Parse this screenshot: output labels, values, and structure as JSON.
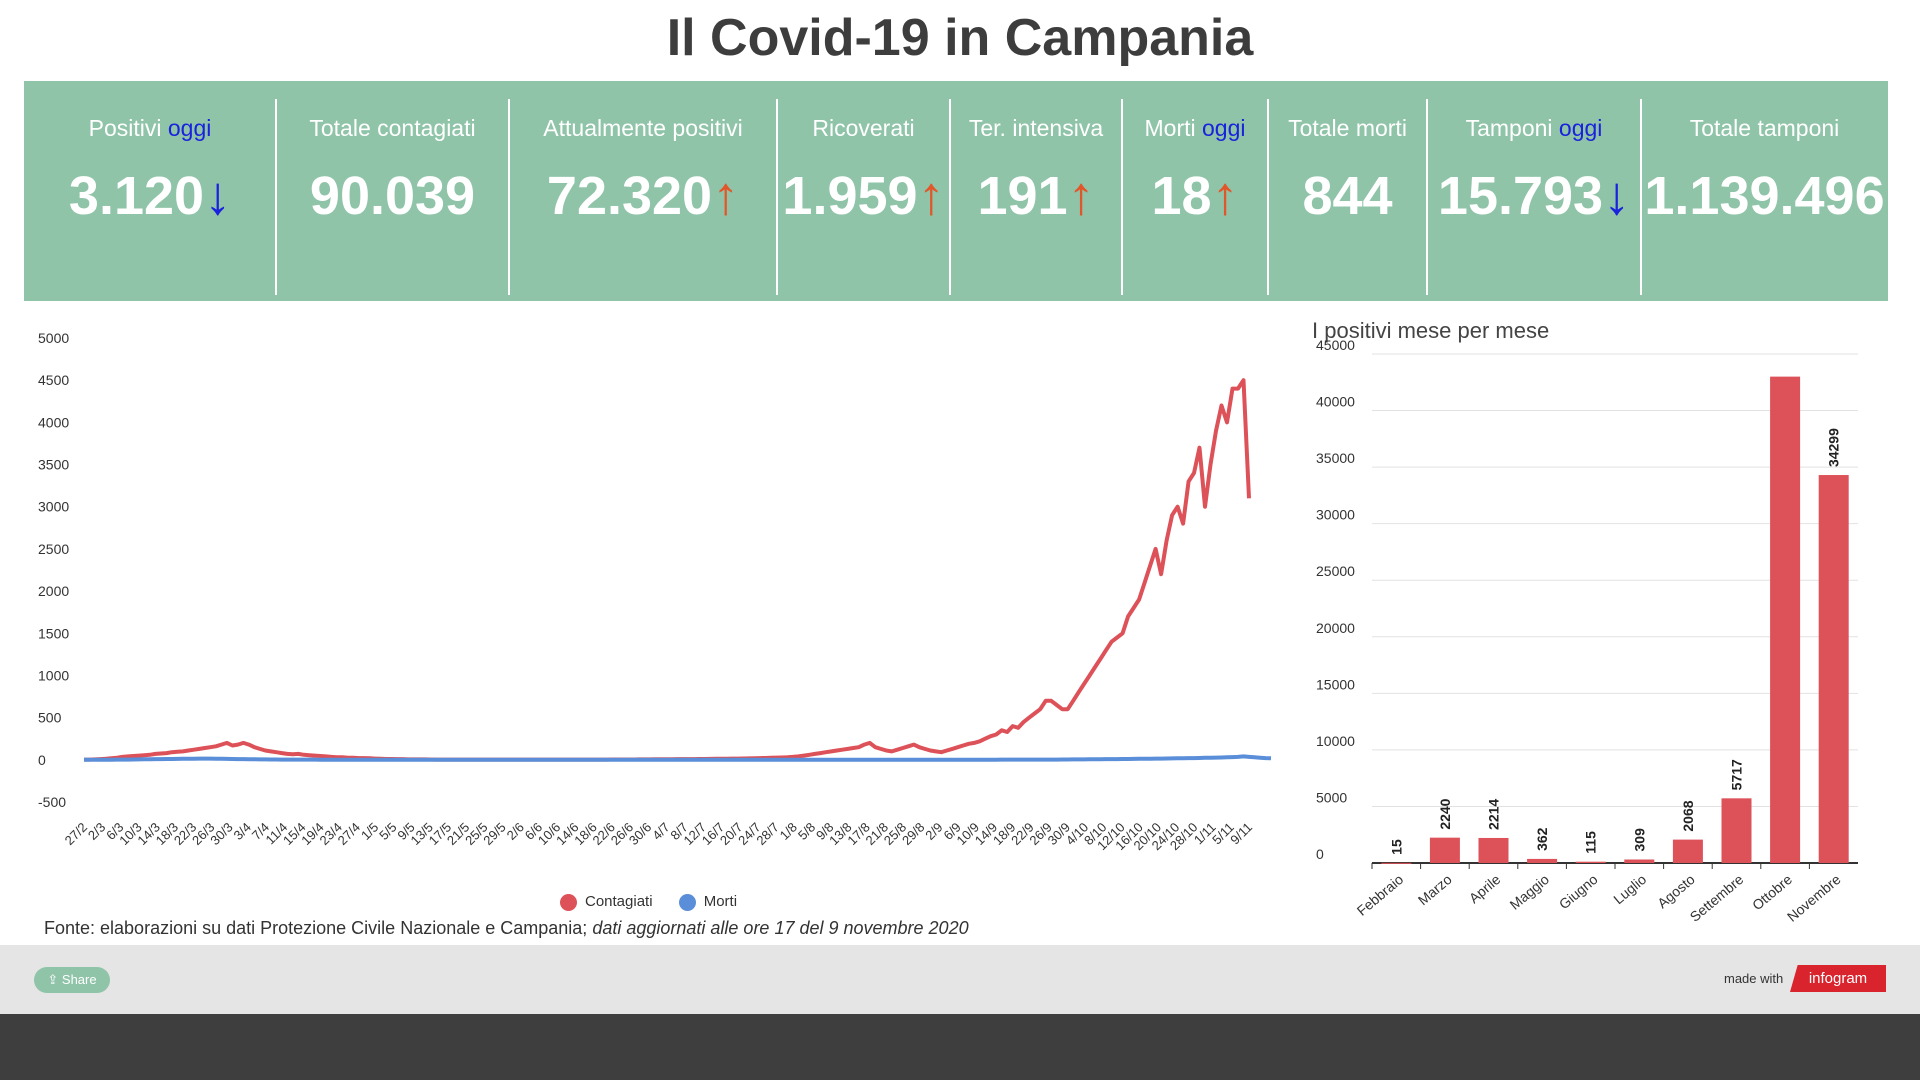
{
  "title": "Il Covid-19 in Campania",
  "stats": [
    {
      "label": "Positivi",
      "highlight": "oggi",
      "value": "3.120",
      "arrow": "↓",
      "trend": "down"
    },
    {
      "label": "Totale contagiati",
      "highlight": "",
      "value": "90.039",
      "arrow": "",
      "trend": ""
    },
    {
      "label": "Attualmente positivi",
      "highlight": "",
      "value": "72.320",
      "arrow": "↑",
      "trend": "up"
    },
    {
      "label": "Ricoverati",
      "highlight": "",
      "value": "1.959",
      "arrow": "↑",
      "trend": "up"
    },
    {
      "label": "Ter. intensiva",
      "highlight": "",
      "value": "191",
      "arrow": "↑",
      "trend": "up"
    },
    {
      "label": "Morti",
      "highlight": "oggi",
      "value": "18",
      "arrow": "↑",
      "trend": "up"
    },
    {
      "label": "Totale morti",
      "highlight": "",
      "value": "844",
      "arrow": "",
      "trend": ""
    },
    {
      "label": "Tamponi",
      "highlight": "oggi",
      "value": "15.793",
      "arrow": "↓",
      "trend": "down"
    },
    {
      "label": "Totale tamponi",
      "highlight": "",
      "value": "1.139.496",
      "arrow": "",
      "trend": ""
    }
  ],
  "colors": {
    "panel": "#8fc4a8",
    "contagiati": "#dd5158",
    "morti": "#5a8ed8",
    "oggi": "#1a22dd",
    "arrow_up": "#e2572a",
    "arrow_down": "#1a22dd"
  },
  "chart_data": [
    {
      "type": "line",
      "title": "",
      "ylim": [
        -500,
        5000
      ],
      "yticks": [
        5000,
        4500,
        4000,
        3500,
        3000,
        2500,
        2000,
        1500,
        1000,
        500,
        0,
        -500
      ],
      "grid": false,
      "legend_placement": "bottom",
      "x_tick_labels": [
        "27/2",
        "2/3",
        "6/3",
        "10/3",
        "14/3",
        "18/3",
        "22/3",
        "26/3",
        "30/3",
        "3/4",
        "7/4",
        "11/4",
        "15/4",
        "19/4",
        "23/4",
        "27/4",
        "1/5",
        "5/5",
        "9/5",
        "13/5",
        "17/5",
        "21/5",
        "25/5",
        "29/5",
        "2/6",
        "6/6",
        "10/6",
        "14/6",
        "18/6",
        "22/6",
        "26/6",
        "30/6",
        "4/7",
        "8/7",
        "12/7",
        "16/7",
        "20/7",
        "24/7",
        "28/7",
        "1/8",
        "5/8",
        "9/8",
        "13/8",
        "17/8",
        "21/8",
        "25/8",
        "29/8",
        "2/9",
        "6/9",
        "10/9",
        "14/9",
        "18/9",
        "22/9",
        "26/9",
        "30/9",
        "4/10",
        "8/10",
        "12/10",
        "16/10",
        "20/10",
        "24/10",
        "28/10",
        "1/11",
        "5/11",
        "9/11"
      ],
      "series": [
        {
          "name": "Contagiati",
          "values": [
            2,
            3,
            5,
            8,
            12,
            18,
            25,
            35,
            40,
            45,
            50,
            55,
            60,
            70,
            75,
            80,
            90,
            95,
            100,
            110,
            120,
            130,
            140,
            150,
            160,
            180,
            200,
            170,
            180,
            200,
            180,
            150,
            130,
            110,
            100,
            90,
            80,
            70,
            65,
            70,
            60,
            55,
            50,
            45,
            40,
            35,
            30,
            30,
            25,
            25,
            20,
            20,
            18,
            15,
            12,
            10,
            10,
            8,
            8,
            5,
            5,
            5,
            5,
            4,
            3,
            3,
            3,
            3,
            3,
            2,
            2,
            2,
            2,
            2,
            2,
            2,
            2,
            2,
            2,
            2,
            2,
            2,
            2,
            2,
            2,
            3,
            3,
            3,
            3,
            3,
            3,
            3,
            3,
            3,
            3,
            3,
            4,
            4,
            4,
            4,
            4,
            5,
            5,
            5,
            6,
            6,
            6,
            7,
            8,
            8,
            9,
            9,
            10,
            10,
            11,
            12,
            12,
            13,
            14,
            15,
            16,
            17,
            18,
            20,
            22,
            24,
            26,
            28,
            30,
            35,
            40,
            50,
            60,
            70,
            80,
            90,
            100,
            110,
            120,
            130,
            140,
            150,
            180,
            200,
            150,
            130,
            110,
            100,
            120,
            140,
            160,
            180,
            150,
            130,
            110,
            100,
            90,
            110,
            130,
            150,
            170,
            190,
            200,
            220,
            250,
            280,
            300,
            350,
            330,
            400,
            380,
            450,
            500,
            550,
            600,
            700,
            700,
            650,
            600,
            600,
            700,
            800,
            900,
            1000,
            1100,
            1200,
            1300,
            1400,
            1450,
            1500,
            1700,
            1800,
            1900,
            2100,
            2300,
            2500,
            2200,
            2600,
            2900,
            3000,
            2800,
            3300,
            3400,
            3700,
            3000,
            3500,
            3900,
            4200,
            4000,
            4400,
            4400,
            4500,
            3100
          ],
          "color": "#dd5158"
        },
        {
          "name": "Morti",
          "values": [
            0,
            0,
            0,
            0,
            1,
            1,
            2,
            2,
            3,
            4,
            5,
            6,
            7,
            8,
            9,
            10,
            10,
            11,
            12,
            12,
            13,
            14,
            15,
            14,
            13,
            12,
            11,
            10,
            9,
            8,
            7,
            6,
            5,
            5,
            4,
            4,
            3,
            3,
            3,
            2,
            2,
            2,
            2,
            1,
            1,
            1,
            1,
            1,
            1,
            1,
            0,
            0,
            0,
            0,
            0,
            0,
            0,
            0,
            0,
            0,
            0,
            0,
            0,
            0,
            0,
            0,
            0,
            0,
            0,
            0,
            0,
            0,
            0,
            0,
            0,
            0,
            0,
            0,
            0,
            0,
            0,
            0,
            0,
            0,
            0,
            0,
            0,
            0,
            0,
            0,
            0,
            0,
            0,
            0,
            0,
            0,
            0,
            0,
            0,
            0,
            0,
            0,
            0,
            0,
            0,
            0,
            0,
            0,
            0,
            0,
            0,
            0,
            0,
            0,
            0,
            0,
            0,
            0,
            0,
            0,
            0,
            0,
            1,
            1,
            1,
            1,
            1,
            1,
            1,
            1,
            1,
            1,
            1,
            1,
            1,
            1,
            1,
            1,
            1,
            1,
            1,
            1,
            1,
            1,
            1,
            1,
            1,
            1,
            1,
            1,
            1,
            1,
            1,
            1,
            1,
            1,
            1,
            1,
            1,
            1,
            1,
            1,
            1,
            1,
            1,
            1,
            1,
            2,
            2,
            2,
            2,
            2,
            2,
            2,
            3,
            3,
            3,
            3,
            4,
            4,
            5,
            5,
            5,
            6,
            6,
            7,
            8,
            8,
            9,
            10,
            10,
            11,
            12,
            12,
            13,
            14,
            15,
            16,
            17,
            18,
            19,
            20,
            20,
            22,
            24,
            25,
            26,
            28,
            30,
            32,
            34,
            40,
            35,
            30,
            25,
            20,
            18
          ],
          "color": "#5a8ed8"
        }
      ]
    },
    {
      "type": "bar",
      "title": "I positivi mese per mese",
      "categories": [
        "Febbraio",
        "Marzo",
        "Aprile",
        "Maggio",
        "Giugno",
        "Luglio",
        "Agosto",
        "Settembre",
        "Ottobre",
        "Novembre"
      ],
      "values": [
        15,
        2240,
        2214,
        362,
        115,
        309,
        2068,
        5717,
        43000,
        34299
      ],
      "data_labels": [
        "15",
        "2240",
        "2214",
        "362",
        "115",
        "309",
        "2068",
        "5717",
        "",
        "34299"
      ],
      "ylim": [
        0,
        45000
      ],
      "yticks": [
        45000,
        40000,
        35000,
        30000,
        25000,
        20000,
        15000,
        10000,
        5000,
        0
      ],
      "grid": true,
      "color": "#dd5158"
    }
  ],
  "legend": [
    {
      "name": "Contagiati",
      "color": "#dd5158"
    },
    {
      "name": "Morti",
      "color": "#5a8ed8"
    }
  ],
  "source": {
    "text": "Fonte: elaborazioni su dati Protezione Civile Nazionale e Campania;",
    "italic": "dati aggiornati alle ore 17 del 9 novembre 2020"
  },
  "footer": {
    "share": "Share",
    "made_with": "made with",
    "brand": "infogram"
  }
}
